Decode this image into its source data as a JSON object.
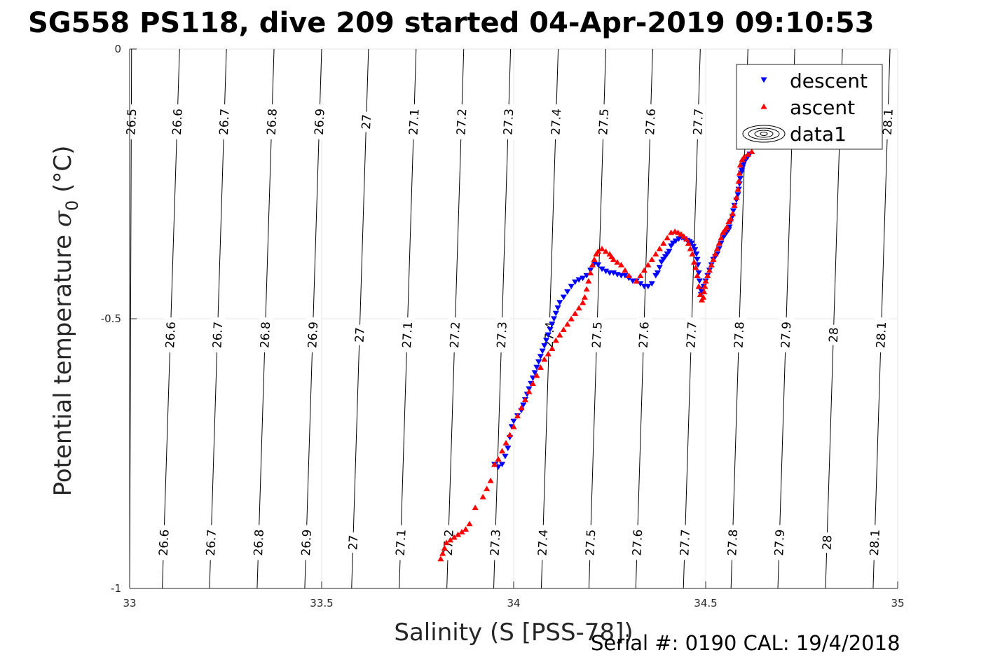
{
  "chart_data": {
    "type": "scatter",
    "title": "SG558 PS118, dive 209 started 04-Apr-2019 09:10:53",
    "xlabel": "Salinity (S [PSS-78])",
    "ylabel_main": "Potential temperature ",
    "ylabel_sigma": "σ",
    "ylabel_sub": "0",
    "ylabel_unit": " (°C)",
    "xlim": [
      33,
      35
    ],
    "ylim": [
      -1,
      0
    ],
    "xticks": [
      {
        "v": 33,
        "label": "33"
      },
      {
        "v": 33.5,
        "label": "33.5"
      },
      {
        "v": 34,
        "label": "34"
      },
      {
        "v": 34.5,
        "label": "34.5"
      },
      {
        "v": 35,
        "label": "35"
      }
    ],
    "yticks": [
      {
        "v": 0,
        "label": "0"
      },
      {
        "v": -0.5,
        "label": "-0.5"
      },
      {
        "v": -1,
        "label": "-1"
      }
    ],
    "grid": true,
    "legend": {
      "position": "top-right",
      "entries": [
        {
          "label": "descent",
          "marker": "triangle-down",
          "color": "#0000ff"
        },
        {
          "label": "ascent",
          "marker": "triangle-up",
          "color": "#ff0000"
        },
        {
          "label": "data1",
          "marker": "contour-icon",
          "color": "#000000"
        }
      ]
    },
    "density_contours": {
      "line_color": "#000000",
      "lines": [
        {
          "label": "26.5",
          "x_bottom": 33.0,
          "x_top": 33.005
        },
        {
          "label": "26.6",
          "x_bottom": 33.085,
          "x_top": 33.13
        },
        {
          "label": "26.7",
          "x_bottom": 33.208,
          "x_top": 33.252
        },
        {
          "label": "26.8",
          "x_bottom": 33.332,
          "x_top": 33.376
        },
        {
          "label": "26.9",
          "x_bottom": 33.456,
          "x_top": 33.5
        },
        {
          "label": "27",
          "x_bottom": 33.578,
          "x_top": 33.622
        },
        {
          "label": "27.1",
          "x_bottom": 33.702,
          "x_top": 33.746
        },
        {
          "label": "27.2",
          "x_bottom": 33.826,
          "x_top": 33.87
        },
        {
          "label": "27.3",
          "x_bottom": 33.948,
          "x_top": 33.992
        },
        {
          "label": "27.4",
          "x_bottom": 34.072,
          "x_top": 34.116
        },
        {
          "label": "27.5",
          "x_bottom": 34.196,
          "x_top": 34.24
        },
        {
          "label": "27.6",
          "x_bottom": 34.318,
          "x_top": 34.362
        },
        {
          "label": "27.7",
          "x_bottom": 34.442,
          "x_top": 34.486
        },
        {
          "label": "27.8",
          "x_bottom": 34.566,
          "x_top": 34.61
        },
        {
          "label": "27.9",
          "x_bottom": 34.688,
          "x_top": 34.732
        },
        {
          "label": "28",
          "x_bottom": 34.812,
          "x_top": 34.856
        },
        {
          "label": "28.1",
          "x_bottom": 34.936,
          "x_top": 34.98
        }
      ],
      "label_rows": [
        {
          "y": -0.135,
          "labels": [
            "26.5",
            "26.6",
            "26.7",
            "26.8",
            "26.9",
            "27",
            "27.1",
            "27.2",
            "27.3",
            "27.4",
            "27.5",
            "27.6",
            "27.7",
            "28.1"
          ]
        },
        {
          "y": -0.53,
          "labels": [
            "26.6",
            "26.7",
            "26.8",
            "26.9",
            "27",
            "27.1",
            "27.2",
            "27.3",
            "27.4",
            "27.5",
            "27.6",
            "27.7",
            "27.8",
            "27.9",
            "28",
            "28.1"
          ]
        },
        {
          "y": -0.915,
          "labels": [
            "26.6",
            "26.7",
            "26.8",
            "26.9",
            "27",
            "27.1",
            "27.2",
            "27.3",
            "27.4",
            "27.5",
            "27.6",
            "27.7",
            "27.8",
            "27.9",
            "28",
            "28.1"
          ]
        }
      ]
    },
    "series": [
      {
        "name": "descent",
        "color": "#0000ff",
        "marker": "triangle-down",
        "points": [
          [
            34.615,
            -0.195
          ],
          [
            34.61,
            -0.2
          ],
          [
            34.605,
            -0.205
          ],
          [
            34.6,
            -0.21
          ],
          [
            34.598,
            -0.215
          ],
          [
            34.596,
            -0.22
          ],
          [
            34.594,
            -0.225
          ],
          [
            34.592,
            -0.23
          ],
          [
            34.59,
            -0.24
          ],
          [
            34.588,
            -0.25
          ],
          [
            34.586,
            -0.26
          ],
          [
            34.584,
            -0.27
          ],
          [
            34.58,
            -0.28
          ],
          [
            34.575,
            -0.29
          ],
          [
            34.572,
            -0.3
          ],
          [
            34.57,
            -0.31
          ],
          [
            34.565,
            -0.32
          ],
          [
            34.562,
            -0.33
          ],
          [
            34.56,
            -0.335
          ],
          [
            34.555,
            -0.34
          ],
          [
            34.55,
            -0.345
          ],
          [
            34.545,
            -0.35
          ],
          [
            34.54,
            -0.36
          ],
          [
            34.535,
            -0.37
          ],
          [
            34.53,
            -0.38
          ],
          [
            34.525,
            -0.385
          ],
          [
            34.52,
            -0.39
          ],
          [
            34.515,
            -0.4
          ],
          [
            34.51,
            -0.41
          ],
          [
            34.505,
            -0.42
          ],
          [
            34.5,
            -0.43
          ],
          [
            34.495,
            -0.44
          ],
          [
            34.49,
            -0.45
          ],
          [
            34.488,
            -0.455
          ],
          [
            34.486,
            -0.445
          ],
          [
            34.484,
            -0.43
          ],
          [
            34.482,
            -0.415
          ],
          [
            34.48,
            -0.4
          ],
          [
            34.478,
            -0.39
          ],
          [
            34.476,
            -0.38
          ],
          [
            34.472,
            -0.372
          ],
          [
            34.468,
            -0.366
          ],
          [
            34.463,
            -0.36
          ],
          [
            34.458,
            -0.357
          ],
          [
            34.452,
            -0.355
          ],
          [
            34.445,
            -0.352
          ],
          [
            34.438,
            -0.35
          ],
          [
            34.43,
            -0.352
          ],
          [
            34.422,
            -0.356
          ],
          [
            34.415,
            -0.36
          ],
          [
            34.41,
            -0.365
          ],
          [
            34.405,
            -0.375
          ],
          [
            34.4,
            -0.38
          ],
          [
            34.395,
            -0.385
          ],
          [
            34.39,
            -0.39
          ],
          [
            34.385,
            -0.395
          ],
          [
            34.38,
            -0.405
          ],
          [
            34.375,
            -0.415
          ],
          [
            34.37,
            -0.42
          ],
          [
            34.36,
            -0.435
          ],
          [
            34.35,
            -0.44
          ],
          [
            34.34,
            -0.44
          ],
          [
            34.33,
            -0.435
          ],
          [
            34.32,
            -0.43
          ],
          [
            34.31,
            -0.43
          ],
          [
            34.3,
            -0.425
          ],
          [
            34.29,
            -0.42
          ],
          [
            34.28,
            -0.42
          ],
          [
            34.27,
            -0.418
          ],
          [
            34.26,
            -0.415
          ],
          [
            34.25,
            -0.415
          ],
          [
            34.24,
            -0.412
          ],
          [
            34.23,
            -0.408
          ],
          [
            34.22,
            -0.4
          ],
          [
            34.21,
            -0.398
          ],
          [
            34.2,
            -0.41
          ],
          [
            34.19,
            -0.42
          ],
          [
            34.18,
            -0.425
          ],
          [
            34.17,
            -0.428
          ],
          [
            34.16,
            -0.432
          ],
          [
            34.15,
            -0.44
          ],
          [
            34.14,
            -0.45
          ],
          [
            34.13,
            -0.46
          ],
          [
            34.12,
            -0.47
          ],
          [
            34.115,
            -0.48
          ],
          [
            34.11,
            -0.49
          ],
          [
            34.105,
            -0.5
          ],
          [
            34.1,
            -0.51
          ],
          [
            34.095,
            -0.52
          ],
          [
            34.09,
            -0.53
          ],
          [
            34.085,
            -0.54
          ],
          [
            34.08,
            -0.55
          ],
          [
            34.075,
            -0.56
          ],
          [
            34.07,
            -0.57
          ],
          [
            34.065,
            -0.58
          ],
          [
            34.06,
            -0.59
          ],
          [
            34.055,
            -0.6
          ],
          [
            34.05,
            -0.61
          ],
          [
            34.045,
            -0.62
          ],
          [
            34.04,
            -0.63
          ],
          [
            34.035,
            -0.64
          ],
          [
            34.03,
            -0.65
          ],
          [
            34.025,
            -0.66
          ],
          [
            34.02,
            -0.67
          ],
          [
            34.01,
            -0.68
          ],
          [
            34.0,
            -0.69
          ],
          [
            33.995,
            -0.7
          ],
          [
            33.99,
            -0.72
          ],
          [
            33.985,
            -0.74
          ],
          [
            33.978,
            -0.755
          ],
          [
            33.97,
            -0.77
          ],
          [
            33.96,
            -0.775
          ],
          [
            33.95,
            -0.77
          ]
        ]
      },
      {
        "name": "ascent",
        "color": "#ff0000",
        "marker": "triangle-up",
        "points": [
          [
            34.62,
            -0.19
          ],
          [
            34.61,
            -0.195
          ],
          [
            34.6,
            -0.2
          ],
          [
            34.595,
            -0.205
          ],
          [
            34.59,
            -0.215
          ],
          [
            34.588,
            -0.23
          ],
          [
            34.586,
            -0.245
          ],
          [
            34.584,
            -0.26
          ],
          [
            34.58,
            -0.275
          ],
          [
            34.575,
            -0.29
          ],
          [
            34.57,
            -0.305
          ],
          [
            34.565,
            -0.315
          ],
          [
            34.56,
            -0.32
          ],
          [
            34.555,
            -0.33
          ],
          [
            34.55,
            -0.335
          ],
          [
            34.545,
            -0.34
          ],
          [
            34.54,
            -0.35
          ],
          [
            34.535,
            -0.36
          ],
          [
            34.53,
            -0.37
          ],
          [
            34.525,
            -0.38
          ],
          [
            34.52,
            -0.39
          ],
          [
            34.515,
            -0.4
          ],
          [
            34.51,
            -0.41
          ],
          [
            34.505,
            -0.42
          ],
          [
            34.5,
            -0.43
          ],
          [
            34.498,
            -0.44
          ],
          [
            34.496,
            -0.45
          ],
          [
            34.494,
            -0.46
          ],
          [
            34.49,
            -0.465
          ],
          [
            34.486,
            -0.455
          ],
          [
            34.482,
            -0.44
          ],
          [
            34.478,
            -0.42
          ],
          [
            34.474,
            -0.405
          ],
          [
            34.47,
            -0.395
          ],
          [
            34.465,
            -0.38
          ],
          [
            34.46,
            -0.37
          ],
          [
            34.455,
            -0.36
          ],
          [
            34.45,
            -0.352
          ],
          [
            34.443,
            -0.347
          ],
          [
            34.436,
            -0.343
          ],
          [
            34.428,
            -0.34
          ],
          [
            34.42,
            -0.338
          ],
          [
            34.41,
            -0.34
          ],
          [
            34.4,
            -0.35
          ],
          [
            34.39,
            -0.36
          ],
          [
            34.38,
            -0.37
          ],
          [
            34.37,
            -0.38
          ],
          [
            34.36,
            -0.39
          ],
          [
            34.35,
            -0.4
          ],
          [
            34.34,
            -0.41
          ],
          [
            34.33,
            -0.42
          ],
          [
            34.32,
            -0.43
          ],
          [
            34.3,
            -0.42
          ],
          [
            34.29,
            -0.41
          ],
          [
            34.28,
            -0.4
          ],
          [
            34.27,
            -0.395
          ],
          [
            34.26,
            -0.39
          ],
          [
            34.255,
            -0.385
          ],
          [
            34.25,
            -0.38
          ],
          [
            34.24,
            -0.375
          ],
          [
            34.23,
            -0.37
          ],
          [
            34.22,
            -0.375
          ],
          [
            34.215,
            -0.38
          ],
          [
            34.21,
            -0.39
          ],
          [
            34.205,
            -0.4
          ],
          [
            34.2,
            -0.415
          ],
          [
            34.195,
            -0.43
          ],
          [
            34.19,
            -0.445
          ],
          [
            34.185,
            -0.46
          ],
          [
            34.18,
            -0.47
          ],
          [
            34.17,
            -0.48
          ],
          [
            34.16,
            -0.49
          ],
          [
            34.15,
            -0.5
          ],
          [
            34.14,
            -0.51
          ],
          [
            34.13,
            -0.52
          ],
          [
            34.12,
            -0.53
          ],
          [
            34.11,
            -0.54
          ],
          [
            34.1,
            -0.555
          ],
          [
            34.09,
            -0.565
          ],
          [
            34.08,
            -0.575
          ],
          [
            34.07,
            -0.59
          ],
          [
            34.06,
            -0.605
          ],
          [
            34.05,
            -0.62
          ],
          [
            34.04,
            -0.635
          ],
          [
            34.03,
            -0.65
          ],
          [
            34.02,
            -0.665
          ],
          [
            34.01,
            -0.68
          ],
          [
            34.0,
            -0.7
          ],
          [
            33.99,
            -0.715
          ],
          [
            33.98,
            -0.73
          ],
          [
            33.97,
            -0.745
          ],
          [
            33.96,
            -0.76
          ],
          [
            33.95,
            -0.77
          ],
          [
            33.94,
            -0.8
          ],
          [
            33.93,
            -0.815
          ],
          [
            33.92,
            -0.83
          ],
          [
            33.9,
            -0.85
          ],
          [
            33.885,
            -0.88
          ],
          [
            33.875,
            -0.89
          ],
          [
            33.865,
            -0.895
          ],
          [
            33.855,
            -0.9
          ],
          [
            33.845,
            -0.905
          ],
          [
            33.835,
            -0.91
          ],
          [
            33.825,
            -0.915
          ],
          [
            33.82,
            -0.925
          ],
          [
            33.815,
            -0.935
          ],
          [
            33.81,
            -0.945
          ]
        ]
      }
    ]
  },
  "footer": {
    "serial": "Serial #: 0190  CAL: 19/4/2018"
  }
}
